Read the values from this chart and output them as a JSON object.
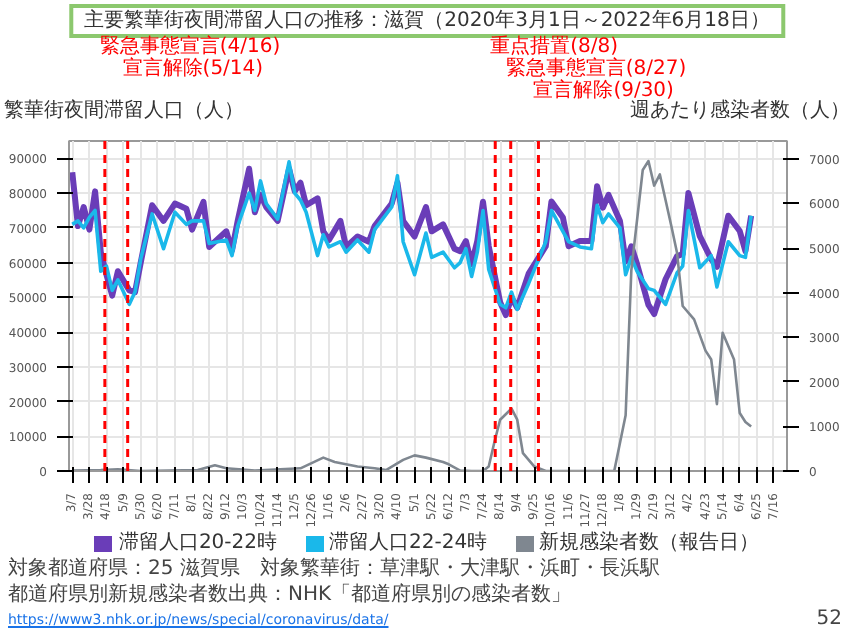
{
  "chart_data": {
    "type": "line",
    "title": "主要繁華街夜間滞留人口の推移：滋賀（2020年3月1日～2022年6月18日）",
    "ylabel": "繁華街夜間滞留人口（人）",
    "y2label": "週あたり感染者数（人）",
    "xlim": [
      "2020-03-03",
      "2022-08-01"
    ],
    "xticks": [
      {
        "value": "2020-03-07",
        "label": "3/7"
      },
      {
        "value": "2020-03-28",
        "label": "3/28"
      },
      {
        "value": "2020-04-18",
        "label": "4/18"
      },
      {
        "value": "2020-05-09",
        "label": "5/9"
      },
      {
        "value": "2020-05-30",
        "label": "5/30"
      },
      {
        "value": "2020-06-20",
        "label": "6/20"
      },
      {
        "value": "2020-07-11",
        "label": "7/11"
      },
      {
        "value": "2020-08-01",
        "label": "8/1"
      },
      {
        "value": "2020-08-22",
        "label": "8/22"
      },
      {
        "value": "2020-09-12",
        "label": "9/12"
      },
      {
        "value": "2020-10-03",
        "label": "10/3"
      },
      {
        "value": "2020-10-24",
        "label": "10/24"
      },
      {
        "value": "2020-11-14",
        "label": "11/14"
      },
      {
        "value": "2020-12-05",
        "label": "12/5"
      },
      {
        "value": "2020-12-26",
        "label": "12/26"
      },
      {
        "value": "2021-01-16",
        "label": "1/16"
      },
      {
        "value": "2021-02-06",
        "label": "2/6"
      },
      {
        "value": "2021-02-27",
        "label": "2/27"
      },
      {
        "value": "2021-03-20",
        "label": "3/20"
      },
      {
        "value": "2021-04-10",
        "label": "4/10"
      },
      {
        "value": "2021-05-01",
        "label": "5/1"
      },
      {
        "value": "2021-05-22",
        "label": "5/22"
      },
      {
        "value": "2021-06-12",
        "label": "6/12"
      },
      {
        "value": "2021-07-03",
        "label": "7/3"
      },
      {
        "value": "2021-07-24",
        "label": "7/24"
      },
      {
        "value": "2021-08-14",
        "label": "8/14"
      },
      {
        "value": "2021-09-04",
        "label": "9/4"
      },
      {
        "value": "2021-09-25",
        "label": "9/25"
      },
      {
        "value": "2021-10-16",
        "label": "10/16"
      },
      {
        "value": "2021-11-06",
        "label": "11/6"
      },
      {
        "value": "2021-11-27",
        "label": "11/27"
      },
      {
        "value": "2021-12-18",
        "label": "12/18"
      },
      {
        "value": "2022-01-08",
        "label": "1/8"
      },
      {
        "value": "2022-01-29",
        "label": "1/29"
      },
      {
        "value": "2022-02-19",
        "label": "2/19"
      },
      {
        "value": "2022-03-12",
        "label": "3/12"
      },
      {
        "value": "2022-04-02",
        "label": "4/2"
      },
      {
        "value": "2022-04-23",
        "label": "4/23"
      },
      {
        "value": "2022-05-14",
        "label": "5/14"
      },
      {
        "value": "2022-06-04",
        "label": "6/4"
      },
      {
        "value": "2022-06-25",
        "label": "6/25"
      },
      {
        "value": "2022-07-16",
        "label": "7/16"
      }
    ],
    "ylim": [
      0,
      95000
    ],
    "yticks": [
      0,
      10000,
      20000,
      30000,
      40000,
      50000,
      60000,
      70000,
      80000,
      90000
    ],
    "y2lim": [
      0,
      7400
    ],
    "y2ticks": [
      0,
      1000,
      2000,
      3000,
      4000,
      5000,
      6000,
      7000
    ],
    "grid": true,
    "legend": "bottom",
    "series": [
      {
        "name": "滞留人口20-22時",
        "color": "#6a3db8",
        "x": [
          "2020-03-07",
          "2020-03-14",
          "2020-03-21",
          "2020-03-28",
          "2020-04-04",
          "2020-04-11",
          "2020-04-18",
          "2020-04-25",
          "2020-05-02",
          "2020-05-16",
          "2020-05-23",
          "2020-05-30",
          "2020-06-13",
          "2020-06-27",
          "2020-07-11",
          "2020-07-25",
          "2020-08-01",
          "2020-08-15",
          "2020-08-22",
          "2020-09-12",
          "2020-09-19",
          "2020-09-26",
          "2020-10-10",
          "2020-10-17",
          "2020-10-24",
          "2020-10-31",
          "2020-11-14",
          "2020-11-28",
          "2020-12-05",
          "2020-12-12",
          "2020-12-19",
          "2021-01-02",
          "2021-01-09",
          "2021-01-16",
          "2021-01-30",
          "2021-02-06",
          "2021-02-20",
          "2021-03-06",
          "2021-03-13",
          "2021-04-03",
          "2021-04-10",
          "2021-04-17",
          "2021-05-01",
          "2021-05-15",
          "2021-05-22",
          "2021-06-05",
          "2021-06-19",
          "2021-06-26",
          "2021-07-03",
          "2021-07-10",
          "2021-07-17",
          "2021-07-24",
          "2021-07-31",
          "2021-08-14",
          "2021-08-21",
          "2021-08-28",
          "2021-09-04",
          "2021-09-18",
          "2021-10-09",
          "2021-10-16",
          "2021-10-30",
          "2021-11-06",
          "2021-11-20",
          "2021-12-04",
          "2021-12-11",
          "2021-12-18",
          "2021-12-25",
          "2022-01-08",
          "2022-01-15",
          "2022-01-22",
          "2022-01-29",
          "2022-02-12",
          "2022-02-19",
          "2022-03-05",
          "2022-03-19",
          "2022-03-26",
          "2022-04-02",
          "2022-04-16",
          "2022-04-30",
          "2022-05-07",
          "2022-05-21",
          "2022-06-04",
          "2022-06-11",
          "2022-06-18"
        ],
        "values": [
          86000,
          70500,
          76000,
          69500,
          80500,
          63000,
          56500,
          50500,
          57500,
          52000,
          51500,
          60000,
          76500,
          72000,
          77000,
          75500,
          69500,
          77500,
          64500,
          69000,
          63500,
          72000,
          87000,
          74500,
          79500,
          76000,
          72000,
          87000,
          80500,
          83000,
          76500,
          78500,
          69000,
          66500,
          72000,
          64500,
          67500,
          66000,
          70500,
          77000,
          83000,
          72000,
          67500,
          76000,
          69000,
          71000,
          64000,
          63300,
          66200,
          59600,
          66200,
          77500,
          64700,
          48600,
          44900,
          50000,
          47000,
          56800,
          64700,
          77600,
          73000,
          64700,
          66200,
          66200,
          82000,
          75800,
          79500,
          72000,
          60300,
          64700,
          59600,
          47800,
          45200,
          55200,
          61800,
          62500,
          80000,
          67600,
          61000,
          58800,
          73500,
          69100,
          63300,
          73500
        ]
      },
      {
        "name": "滞留人口22-24時",
        "color": "#1ab8ea",
        "x": [
          "2020-03-07",
          "2020-03-14",
          "2020-03-21",
          "2020-03-28",
          "2020-04-04",
          "2020-04-11",
          "2020-04-18",
          "2020-04-25",
          "2020-05-02",
          "2020-05-16",
          "2020-05-23",
          "2020-05-30",
          "2020-06-13",
          "2020-06-27",
          "2020-07-11",
          "2020-07-25",
          "2020-08-01",
          "2020-08-15",
          "2020-08-22",
          "2020-09-12",
          "2020-09-19",
          "2020-09-26",
          "2020-10-10",
          "2020-10-17",
          "2020-10-24",
          "2020-10-31",
          "2020-11-14",
          "2020-11-28",
          "2020-12-05",
          "2020-12-12",
          "2020-12-19",
          "2021-01-02",
          "2021-01-09",
          "2021-01-16",
          "2021-01-30",
          "2021-02-06",
          "2021-02-20",
          "2021-03-06",
          "2021-03-13",
          "2021-04-03",
          "2021-04-10",
          "2021-04-17",
          "2021-05-01",
          "2021-05-15",
          "2021-05-22",
          "2021-06-05",
          "2021-06-19",
          "2021-06-26",
          "2021-07-03",
          "2021-07-10",
          "2021-07-17",
          "2021-07-24",
          "2021-07-31",
          "2021-08-14",
          "2021-08-21",
          "2021-08-28",
          "2021-09-04",
          "2021-09-18",
          "2021-10-09",
          "2021-10-16",
          "2021-10-30",
          "2021-11-06",
          "2021-11-20",
          "2021-12-04",
          "2021-12-11",
          "2021-12-18",
          "2021-12-25",
          "2022-01-08",
          "2022-01-15",
          "2022-01-22",
          "2022-01-29",
          "2022-02-12",
          "2022-02-19",
          "2022-03-05",
          "2022-03-19",
          "2022-03-26",
          "2022-04-02",
          "2022-04-16",
          "2022-04-30",
          "2022-05-07",
          "2022-05-21",
          "2022-06-04",
          "2022-06-11",
          "2022-06-18"
        ],
        "values": [
          71000,
          72000,
          70000,
          73000,
          75000,
          57500,
          59000,
          52000,
          55000,
          48000,
          51500,
          61000,
          74000,
          64000,
          74500,
          71000,
          72000,
          72000,
          65500,
          66500,
          62000,
          70500,
          80000,
          75000,
          83500,
          77000,
          72500,
          89000,
          80000,
          78000,
          74500,
          62000,
          68000,
          64500,
          66000,
          63000,
          66500,
          63000,
          69500,
          76000,
          85000,
          66000,
          56500,
          68500,
          61500,
          63000,
          58500,
          60000,
          64000,
          56000,
          63000,
          75000,
          58000,
          48000,
          47000,
          51500,
          46500,
          54000,
          66000,
          75000,
          69000,
          66000,
          64500,
          64000,
          76500,
          71500,
          74000,
          70000,
          56500,
          61500,
          57500,
          52500,
          52000,
          48000,
          57000,
          59000,
          75000,
          58500,
          62000,
          53000,
          66000,
          62000,
          61500,
          73500
        ]
      },
      {
        "name": "新規感染者数（報告日）",
        "color": "#7f8790",
        "axis": "y2",
        "x": [
          "2020-03-07",
          "2020-04-11",
          "2020-05-02",
          "2020-05-30",
          "2020-08-08",
          "2020-08-29",
          "2020-09-12",
          "2020-10-17",
          "2020-12-12",
          "2021-01-09",
          "2021-01-23",
          "2021-02-20",
          "2021-03-13",
          "2021-03-27",
          "2021-04-17",
          "2021-05-01",
          "2021-05-15",
          "2021-06-05",
          "2021-06-12",
          "2021-06-26",
          "2021-07-10",
          "2021-07-24",
          "2021-07-31",
          "2021-08-07",
          "2021-08-14",
          "2021-08-28",
          "2021-09-04",
          "2021-09-11",
          "2021-09-25",
          "2021-10-09",
          "2022-01-01",
          "2022-01-15",
          "2022-01-22",
          "2022-02-05",
          "2022-02-12",
          "2022-02-19",
          "2022-02-26",
          "2022-03-12",
          "2022-03-19",
          "2022-03-26",
          "2022-04-09",
          "2022-04-23",
          "2022-04-30",
          "2022-05-07",
          "2022-05-14",
          "2022-05-28",
          "2022-06-04",
          "2022-06-11",
          "2022-06-18"
        ],
        "values": [
          10,
          20,
          40,
          0,
          20,
          130,
          60,
          10,
          60,
          300,
          200,
          100,
          60,
          20,
          250,
          350,
          300,
          200,
          150,
          10,
          0,
          0,
          100,
          650,
          1150,
          1400,
          1150,
          400,
          100,
          0,
          0,
          1250,
          4500,
          6750,
          6950,
          6400,
          6650,
          5500,
          4900,
          3700,
          3400,
          2700,
          2500,
          1500,
          3100,
          2500,
          1300,
          1100,
          1000
        ]
      }
    ],
    "ref_lines": [
      {
        "axis": "x",
        "value": "2020-04-16",
        "label": "緊急事態宣言(4/16)",
        "color": "#ff0000",
        "line_style": "dashed"
      },
      {
        "axis": "x",
        "value": "2020-05-14",
        "label": "宣言解除(5/14)",
        "color": "#ff0000",
        "line_style": "dashed"
      },
      {
        "axis": "x",
        "value": "2021-08-08",
        "label": "重点措置(8/8)",
        "color": "#ff0000",
        "line_style": "dashed"
      },
      {
        "axis": "x",
        "value": "2021-08-27",
        "label": "緊急事態宣言(8/27)",
        "color": "#ff0000",
        "line_style": "dashed"
      },
      {
        "axis": "x",
        "value": "2021-09-30",
        "label": "宣言解除(9/30)",
        "color": "#ff0000",
        "line_style": "dashed"
      }
    ],
    "annotations": [
      "対象都道府県：25 滋賀県",
      "対象繁華街：草津駅・大津駅・浜町・長浜駅",
      "都道府県別新規感染者数出典：NHK「都道府県別の感染者数」",
      "https://www3.nhk.or.jp/news/special/coronavirus/data/",
      "52"
    ]
  }
}
